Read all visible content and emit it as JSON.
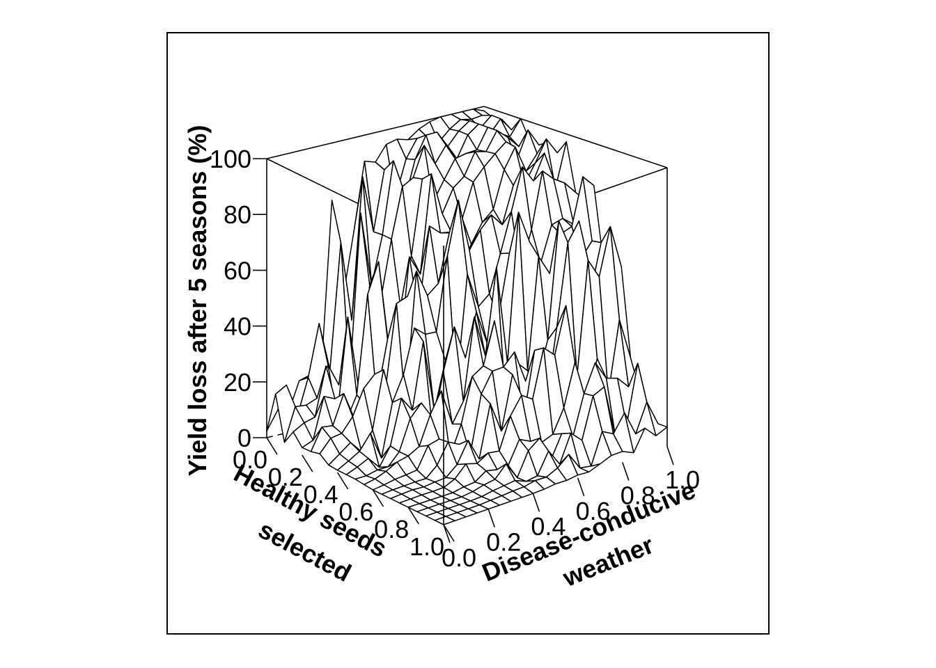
{
  "chart_data": {
    "type": "surface3d",
    "title": "",
    "x_axis": {
      "label_lines": [
        "Healthy seeds",
        "selected"
      ],
      "ticks": [
        "0.0",
        "0.2",
        "0.4",
        "0.6",
        "0.8",
        "1.0"
      ],
      "range": [
        0,
        1
      ]
    },
    "y_axis": {
      "label_lines": [
        "Disease-conducive",
        "weather"
      ],
      "ticks": [
        "0.0",
        "0.2",
        "0.4",
        "0.6",
        "0.8",
        "1.0"
      ],
      "range": [
        0,
        1
      ]
    },
    "z_axis": {
      "label": "Yield loss after 5 seasons (%)",
      "ticks": [
        "0",
        "20",
        "40",
        "60",
        "80",
        "100"
      ],
      "range": [
        0,
        100
      ]
    },
    "grid_steps": 20,
    "surface_description_points": {
      "note_hidden": true
    },
    "sample_surface": {
      "x": [
        0.0,
        0.2,
        0.4,
        0.6,
        0.8,
        1.0
      ],
      "y": [
        0.0,
        0.2,
        0.4,
        0.6,
        0.8,
        1.0
      ],
      "z_rows_by_x": [
        [
          12,
          30,
          72,
          96,
          99,
          100
        ],
        [
          4,
          18,
          55,
          85,
          95,
          98
        ],
        [
          1,
          8,
          38,
          70,
          88,
          95
        ],
        [
          0,
          2,
          14,
          40,
          65,
          80
        ],
        [
          0,
          0,
          3,
          12,
          28,
          40
        ],
        [
          0,
          0,
          0,
          1,
          3,
          6
        ]
      ]
    }
  }
}
